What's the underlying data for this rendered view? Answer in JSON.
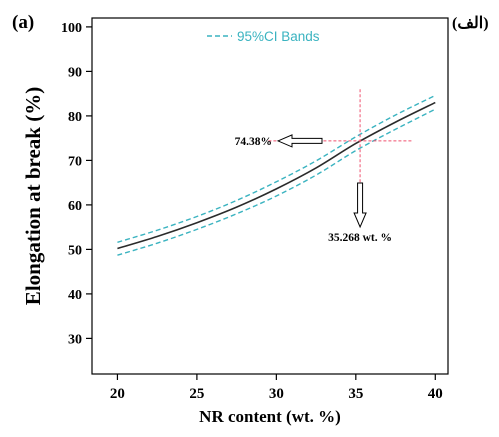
{
  "panel_label": "(a)",
  "panel_label_alt": "(الف)",
  "chart_data": {
    "type": "line",
    "xlabel": "NR content (wt. %)",
    "ylabel": "Elongation at break (%)",
    "xlim": [
      18.4,
      40.8
    ],
    "ylim": [
      22,
      102
    ],
    "x_ticks": [
      20,
      25,
      30,
      35,
      40
    ],
    "y_ticks": [
      30,
      40,
      50,
      60,
      70,
      80,
      90,
      100
    ],
    "grid": false,
    "legend": {
      "position": "top-center",
      "label": "95%CI Bands"
    },
    "series": [
      {
        "style": "fit",
        "color": "#2b2b2b",
        "x": [
          20,
          22.5,
          25,
          27.5,
          30,
          32.5,
          35,
          37.5,
          40
        ],
        "y": [
          50.2,
          52.9,
          56.0,
          59.5,
          63.6,
          68.3,
          73.8,
          78.6,
          83.0
        ]
      },
      {
        "name": "95%CI Bands",
        "style": "dashed",
        "color": "#3ab3c0",
        "x": [
          20,
          22.5,
          25,
          27.5,
          30,
          32.5,
          35,
          37.5,
          40
        ],
        "y": [
          51.6,
          54.3,
          57.4,
          61.0,
          65.2,
          69.9,
          75.3,
          80.2,
          84.6
        ]
      },
      {
        "name": "95%CI Bands",
        "style": "dashed",
        "color": "#3ab3c0",
        "x": [
          20,
          22.5,
          25,
          27.5,
          30,
          32.5,
          35,
          37.5,
          40
        ],
        "y": [
          48.7,
          51.4,
          54.5,
          58.0,
          62.0,
          66.7,
          72.2,
          77.0,
          81.5
        ]
      }
    ],
    "optimum": {
      "x": 35.268,
      "y": 74.38,
      "y_label": "74.38%",
      "x_label": "35.268 wt. %",
      "crosshair_color": "#f0506e"
    }
  }
}
